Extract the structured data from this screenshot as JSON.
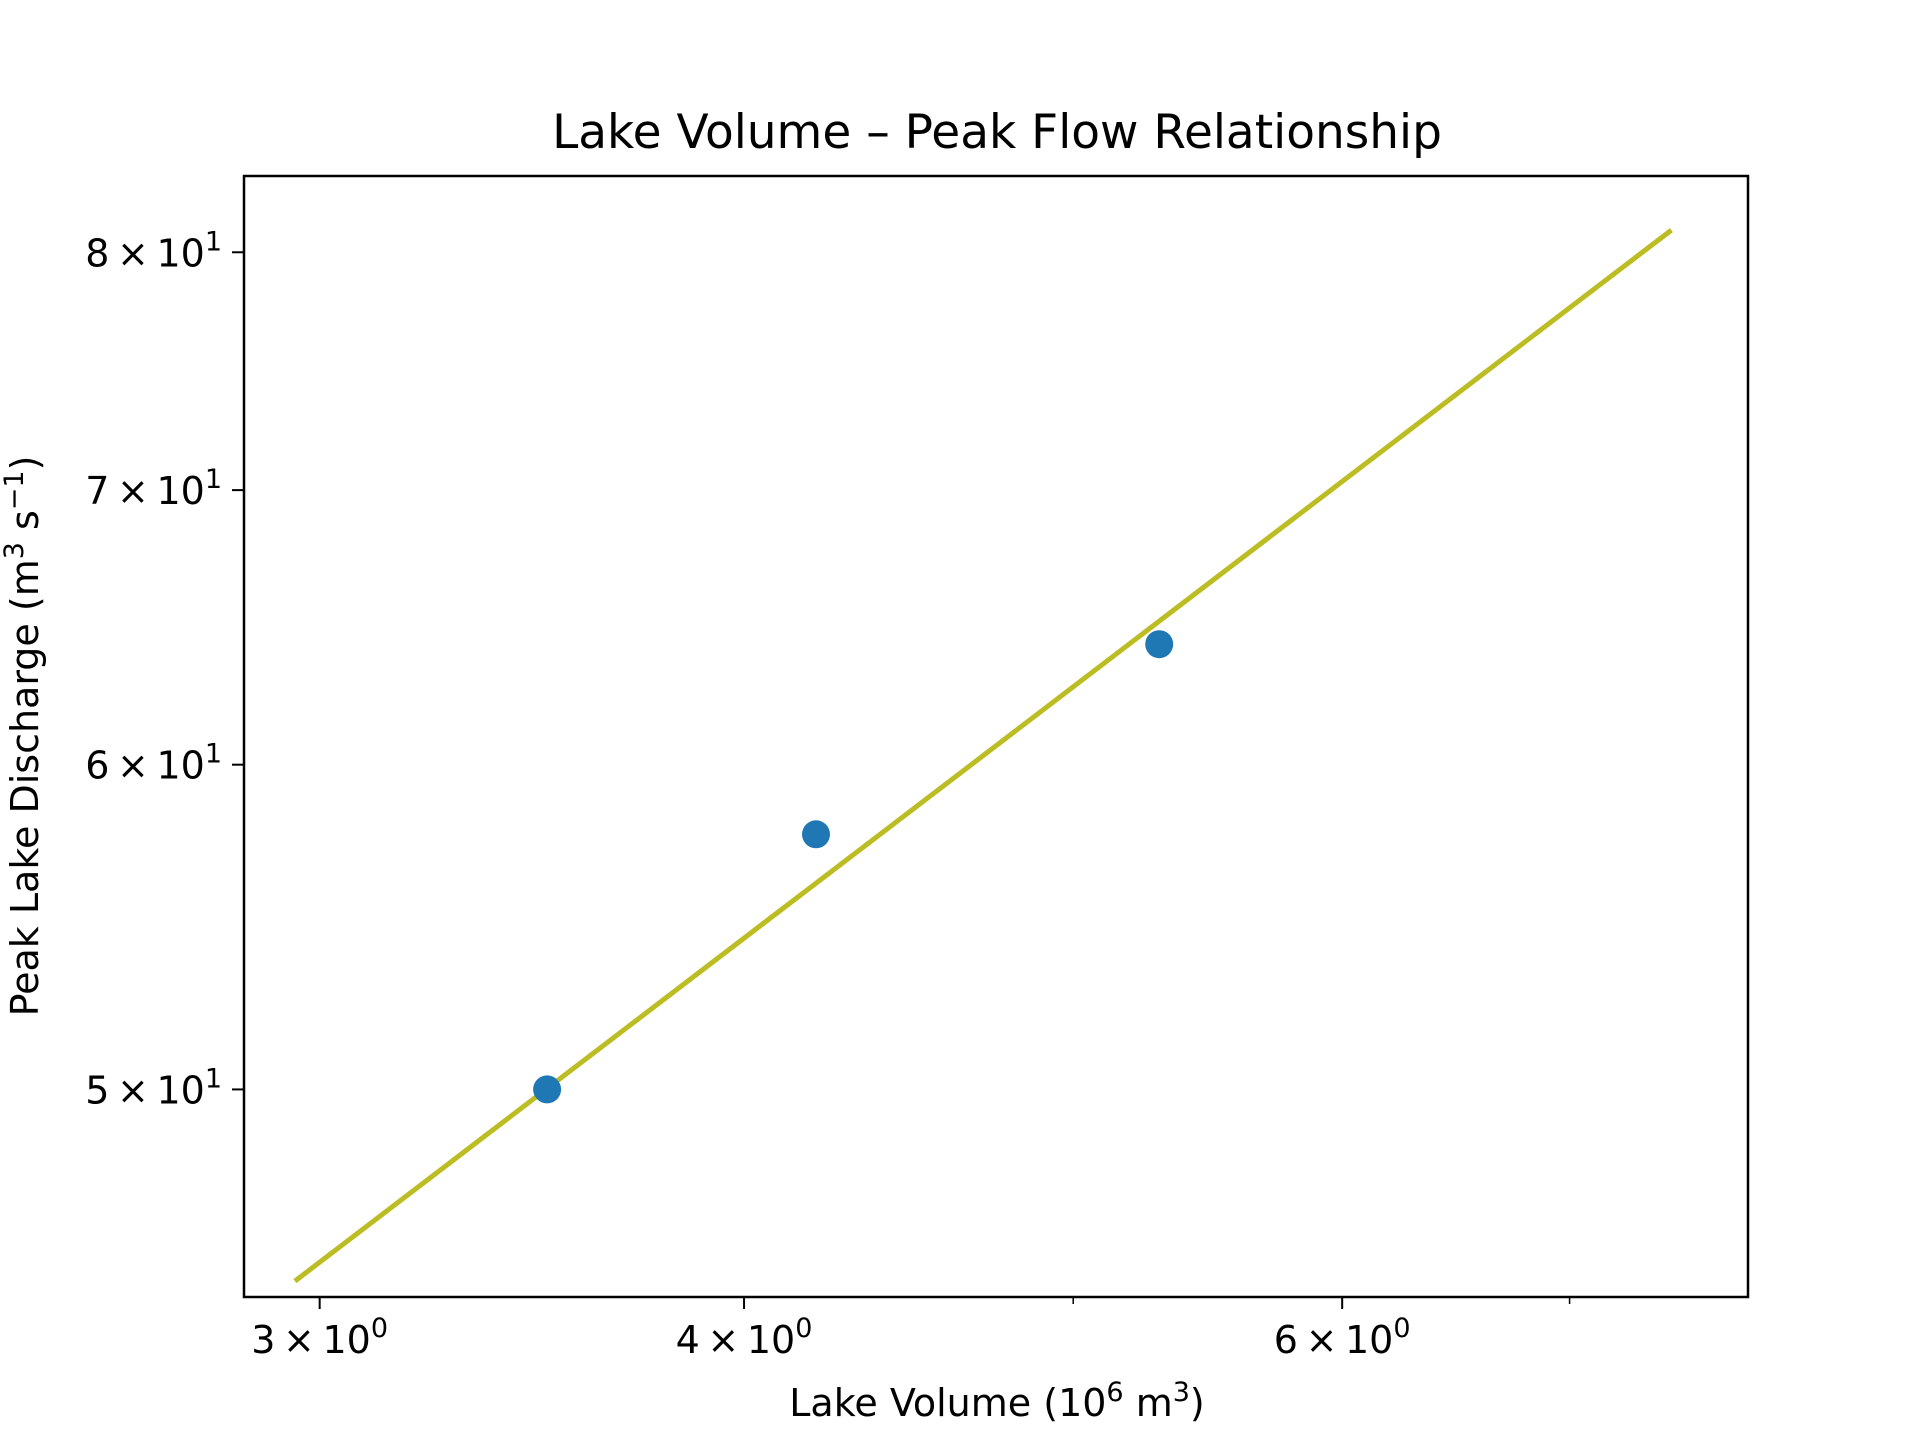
{
  "chart_data": {
    "type": "scatter",
    "title": "Lake Volume – Peak Flow Relationship",
    "xlabel": "Lake Volume (10⁶ m³)",
    "ylabel": "Peak Lake Discharge (m³ s⁻¹)",
    "x_scale": "log",
    "y_scale": "log",
    "xlim": [
      2.85,
      7.9
    ],
    "ylim": [
      44.5,
      83.5
    ],
    "x_ticks": [
      {
        "value": 3,
        "mantissa": "3",
        "exponent": "0"
      },
      {
        "value": 4,
        "mantissa": "4",
        "exponent": "0"
      },
      {
        "value": 6,
        "mantissa": "6",
        "exponent": "0"
      }
    ],
    "x_minor_ticks": [
      5,
      7
    ],
    "y_ticks": [
      {
        "value": 50,
        "mantissa": "5",
        "exponent": "1"
      },
      {
        "value": 60,
        "mantissa": "6",
        "exponent": "1"
      },
      {
        "value": 70,
        "mantissa": "7",
        "exponent": "1"
      },
      {
        "value": 80,
        "mantissa": "8",
        "exponent": "1"
      }
    ],
    "grid": false,
    "series": [
      {
        "kind": "scatter",
        "color": "#1f77b4",
        "points": [
          {
            "x": 3.5,
            "y": 50.0
          },
          {
            "x": 4.2,
            "y": 57.7
          },
          {
            "x": 5.3,
            "y": 64.2
          }
        ]
      },
      {
        "kind": "line",
        "color": "#bcbd22",
        "points": [
          {
            "x": 2.95,
            "y": 44.9
          },
          {
            "x": 7.5,
            "y": 81.0
          }
        ]
      }
    ]
  }
}
